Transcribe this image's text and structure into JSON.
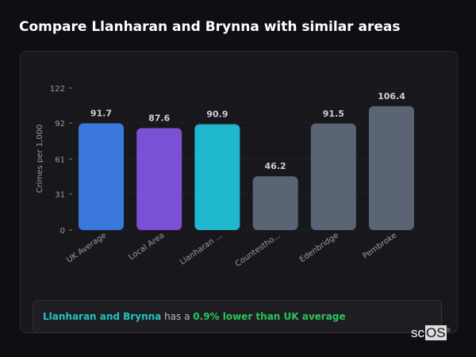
{
  "title": "Compare Llanharan and Brynna with similar areas",
  "chart_data": {
    "type": "bar",
    "ylabel": "Crimes per 1,000",
    "ylim": [
      0,
      122
    ],
    "yticks": [
      0,
      31,
      61,
      92,
      122
    ],
    "grid": true,
    "categories": [
      "UK Average",
      "Local Area",
      "Llanharan ...",
      "Countestho...",
      "Edenbridge",
      "Pembroke"
    ],
    "values": [
      91.7,
      87.6,
      90.9,
      46.2,
      91.5,
      106.4
    ],
    "value_labels": [
      "91.7",
      "87.6",
      "90.9",
      "46.2",
      "91.5",
      "106.4"
    ],
    "colors": [
      "#3a78db",
      "#7a50d4",
      "#20b8cf",
      "#5a6475",
      "#5a6475",
      "#5a6475"
    ]
  },
  "insight": {
    "area": "Llanharan and Brynna",
    "connector": " has a ",
    "comparison": "0.9% lower than UK average"
  },
  "logo": {
    "prefix": "sc",
    "boxed": "OS",
    "mark": "®"
  }
}
